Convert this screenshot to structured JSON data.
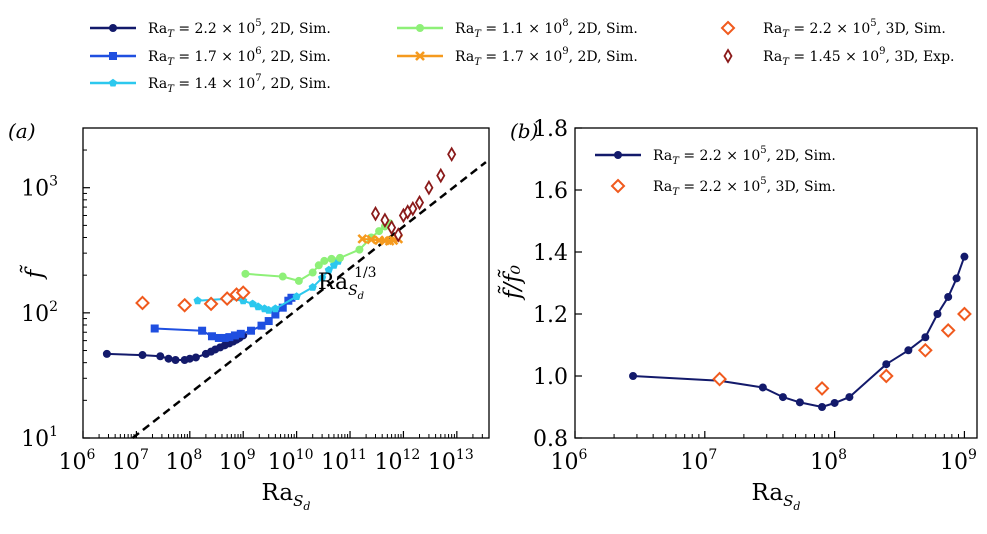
{
  "legend": {
    "entries": [
      {
        "key": "s1",
        "ra_label": "Ra",
        "sub": "T",
        "eq": " = 2.2 × 10",
        "exp": "5",
        "tail": ", 2D, Sim."
      },
      {
        "key": "s2",
        "ra_label": "Ra",
        "sub": "T",
        "eq": " = 1.7 × 10",
        "exp": "6",
        "tail": ", 2D, Sim."
      },
      {
        "key": "s3",
        "ra_label": "Ra",
        "sub": "T",
        "eq": " = 1.4 × 10",
        "exp": "7",
        "tail": ", 2D, Sim."
      },
      {
        "key": "s4",
        "ra_label": "Ra",
        "sub": "T",
        "eq": " = 1.1 × 10",
        "exp": "8",
        "tail": ", 2D, Sim."
      },
      {
        "key": "s5",
        "ra_label": "Ra",
        "sub": "T",
        "eq": " = 1.7 × 10",
        "exp": "9",
        "tail": ", 2D, Sim."
      },
      {
        "key": "s6",
        "ra_label": "Ra",
        "sub": "T",
        "eq": " = 2.2 × 10",
        "exp": "5",
        "tail": ", 3D, Sim."
      },
      {
        "key": "s7",
        "ra_label": "Ra",
        "sub": "T",
        "eq": " = 1.45 × 10",
        "exp": "9",
        "tail": ", 3D, Exp."
      }
    ]
  },
  "panel_b_legend": {
    "entries": [
      {
        "key": "s1",
        "ra_label": "Ra",
        "sub": "T",
        "eq": " = 2.2 × 10",
        "exp": "5",
        "tail": ", 2D, Sim."
      },
      {
        "key": "s6",
        "ra_label": "Ra",
        "sub": "T",
        "eq": " = 2.2 × 10",
        "exp": "5",
        "tail": ", 3D, Sim."
      }
    ]
  },
  "colors": {
    "s1": "#131a6b",
    "s2": "#1f4fe0",
    "s3": "#2cc8ee",
    "s4": "#8ef078",
    "s5": "#f59a1e",
    "s6": "#f05a1e",
    "s7": "#8a1a1a",
    "ref": "#000000"
  },
  "chart_data": [
    {
      "type": "scatter",
      "panel_label": "(a)",
      "xlabel": "Ra",
      "xlabel_sub": "S",
      "xlabel_subsub": "d",
      "ylabel": "f̃",
      "xscale": "log",
      "yscale": "log",
      "xlim": [
        1000000.0,
        40000000000000.0
      ],
      "ylim": [
        10,
        3000
      ],
      "xticks": [
        {
          "value": 1000000.0,
          "base": "10",
          "exp": "6"
        },
        {
          "value": 10000000.0,
          "base": "10",
          "exp": "7"
        },
        {
          "value": 100000000.0,
          "base": "10",
          "exp": "8"
        },
        {
          "value": 1000000000.0,
          "base": "10",
          "exp": "9"
        },
        {
          "value": 10000000000.0,
          "base": "10",
          "exp": "10"
        },
        {
          "value": 100000000000.0,
          "base": "10",
          "exp": "11"
        },
        {
          "value": 1000000000000.0,
          "base": "10",
          "exp": "12"
        },
        {
          "value": 10000000000000.0,
          "base": "10",
          "exp": "13"
        }
      ],
      "yticks": [
        {
          "value": 10,
          "base": "10",
          "exp": "1"
        },
        {
          "value": 100,
          "base": "10",
          "exp": "2"
        },
        {
          "value": 1000,
          "base": "10",
          "exp": "3"
        }
      ],
      "series": [
        {
          "key": "s1",
          "marker": "circle",
          "line": true,
          "x": [
            2800000.0,
            13000000.0,
            28000000.0,
            40000000.0,
            54000000.0,
            80000000.0,
            100000000.0,
            130000000.0,
            200000000.0,
            250000000.0,
            300000000.0,
            370000000.0,
            450000000.0,
            550000000.0,
            650000000.0,
            750000000.0,
            850000000.0,
            1000000000.0
          ],
          "y": [
            47,
            46,
            45,
            43,
            42,
            42,
            43,
            44,
            47,
            49,
            51,
            53,
            55,
            57,
            59,
            61,
            63,
            66
          ]
        },
        {
          "key": "s2",
          "marker": "square",
          "line": true,
          "x": [
            22000000.0,
            170000000.0,
            260000000.0,
            350000000.0,
            450000000.0,
            550000000.0,
            700000000.0,
            900000000.0,
            1400000000.0,
            2200000000.0,
            3000000000.0,
            4000000000.0,
            5500000000.0,
            7000000000.0,
            8000000000.0
          ],
          "y": [
            75,
            72,
            65,
            63,
            63,
            64,
            66,
            68,
            72,
            79,
            86,
            97,
            110,
            125,
            132
          ]
        },
        {
          "key": "s3",
          "marker": "pentagon",
          "line": true,
          "x": [
            140000000.0,
            550000000.0,
            1000000000.0,
            1500000000.0,
            1900000000.0,
            2500000000.0,
            3000000000.0,
            4000000000.0,
            10000000000.0,
            20000000000.0,
            30000000000.0,
            40000000000.0,
            50000000000.0,
            60000000000.0
          ],
          "y": [
            125,
            130,
            125,
            118,
            112,
            108,
            105,
            108,
            135,
            160,
            190,
            220,
            240,
            258
          ]
        },
        {
          "key": "s4",
          "marker": "circle",
          "line": true,
          "x": [
            1100000000.0,
            5500000000.0,
            11000000000.0,
            20000000000.0,
            26000000000.0,
            33000000000.0,
            45000000000.0,
            65000000000.0,
            150000000000.0,
            250000000000.0,
            350000000000.0,
            450000000000.0,
            550000000000.0
          ],
          "y": [
            205,
            195,
            180,
            210,
            240,
            260,
            270,
            275,
            320,
            400,
            450,
            490,
            520
          ]
        },
        {
          "key": "s5",
          "marker": "x",
          "line": true,
          "x": [
            170000000000.0,
            250000000000.0,
            350000000000.0,
            450000000000.0,
            550000000000.0,
            650000000000.0,
            800000000000.0
          ],
          "y": [
            390,
            385,
            380,
            378,
            375,
            380,
            390
          ]
        },
        {
          "key": "s6",
          "marker": "diamond-open",
          "line": false,
          "x": [
            13000000.0,
            80000000.0,
            250000000.0,
            500000000.0,
            750000000.0,
            1000000000.0
          ],
          "y": [
            120,
            115,
            118,
            130,
            140,
            145
          ]
        },
        {
          "key": "s7",
          "marker": "thin-diamond-open",
          "line": false,
          "x": [
            300000000000.0,
            450000000000.0,
            600000000000.0,
            800000000000.0,
            1000000000000.0,
            1200000000000.0,
            1500000000000.0,
            2000000000000.0,
            3000000000000.0,
            5000000000000.0,
            8000000000000.0
          ],
          "y": [
            620,
            550,
            480,
            420,
            600,
            640,
            680,
            760,
            1000,
            1250,
            1850
          ]
        }
      ],
      "reference_line": {
        "key": "ref",
        "style": "dashed",
        "exponent": 0.3333,
        "x_start": 8500000.0,
        "x_end": 35000000000000.0,
        "y_at_xstart": 10
      },
      "annotation": {
        "base": "Ra",
        "sub": "S",
        "subsub": "d",
        "sup": "1/3",
        "x": 25000000000.0,
        "y": 155
      }
    },
    {
      "type": "line",
      "panel_label": "(b)",
      "xlabel": "Ra",
      "xlabel_sub": "S",
      "xlabel_subsub": "d",
      "ylabel": "f̃/f̃₀",
      "xscale": "log",
      "yscale": "linear",
      "xlim": [
        1000000.0,
        1250000000.0
      ],
      "ylim": [
        0.8,
        1.8
      ],
      "xticks": [
        {
          "value": 1000000.0,
          "base": "10",
          "exp": "6"
        },
        {
          "value": 10000000.0,
          "base": "10",
          "exp": "7"
        },
        {
          "value": 100000000.0,
          "base": "10",
          "exp": "8"
        },
        {
          "value": 1000000000.0,
          "base": "10",
          "exp": "9"
        }
      ],
      "yticks": [
        "0.8",
        "1.0",
        "1.2",
        "1.4",
        "1.6",
        "1.8"
      ],
      "series": [
        {
          "key": "s1",
          "marker": "circle",
          "line": true,
          "x": [
            2800000.0,
            13000000.0,
            28000000.0,
            40000000.0,
            54000000.0,
            80000000.0,
            100000000.0,
            130000000.0,
            250000000.0,
            370000000.0,
            500000000.0,
            620000000.0,
            750000000.0,
            870000000.0,
            1000000000.0
          ],
          "y": [
            1.0,
            0.985,
            0.963,
            0.932,
            0.915,
            0.9,
            0.913,
            0.932,
            1.038,
            1.083,
            1.125,
            1.2,
            1.255,
            1.315,
            1.385
          ]
        },
        {
          "key": "s6",
          "marker": "diamond-open",
          "line": false,
          "x": [
            13000000.0,
            80000000.0,
            250000000.0,
            500000000.0,
            750000000.0,
            1000000000.0
          ],
          "y": [
            0.99,
            0.96,
            1.0,
            1.083,
            1.147,
            1.2
          ]
        }
      ]
    }
  ]
}
